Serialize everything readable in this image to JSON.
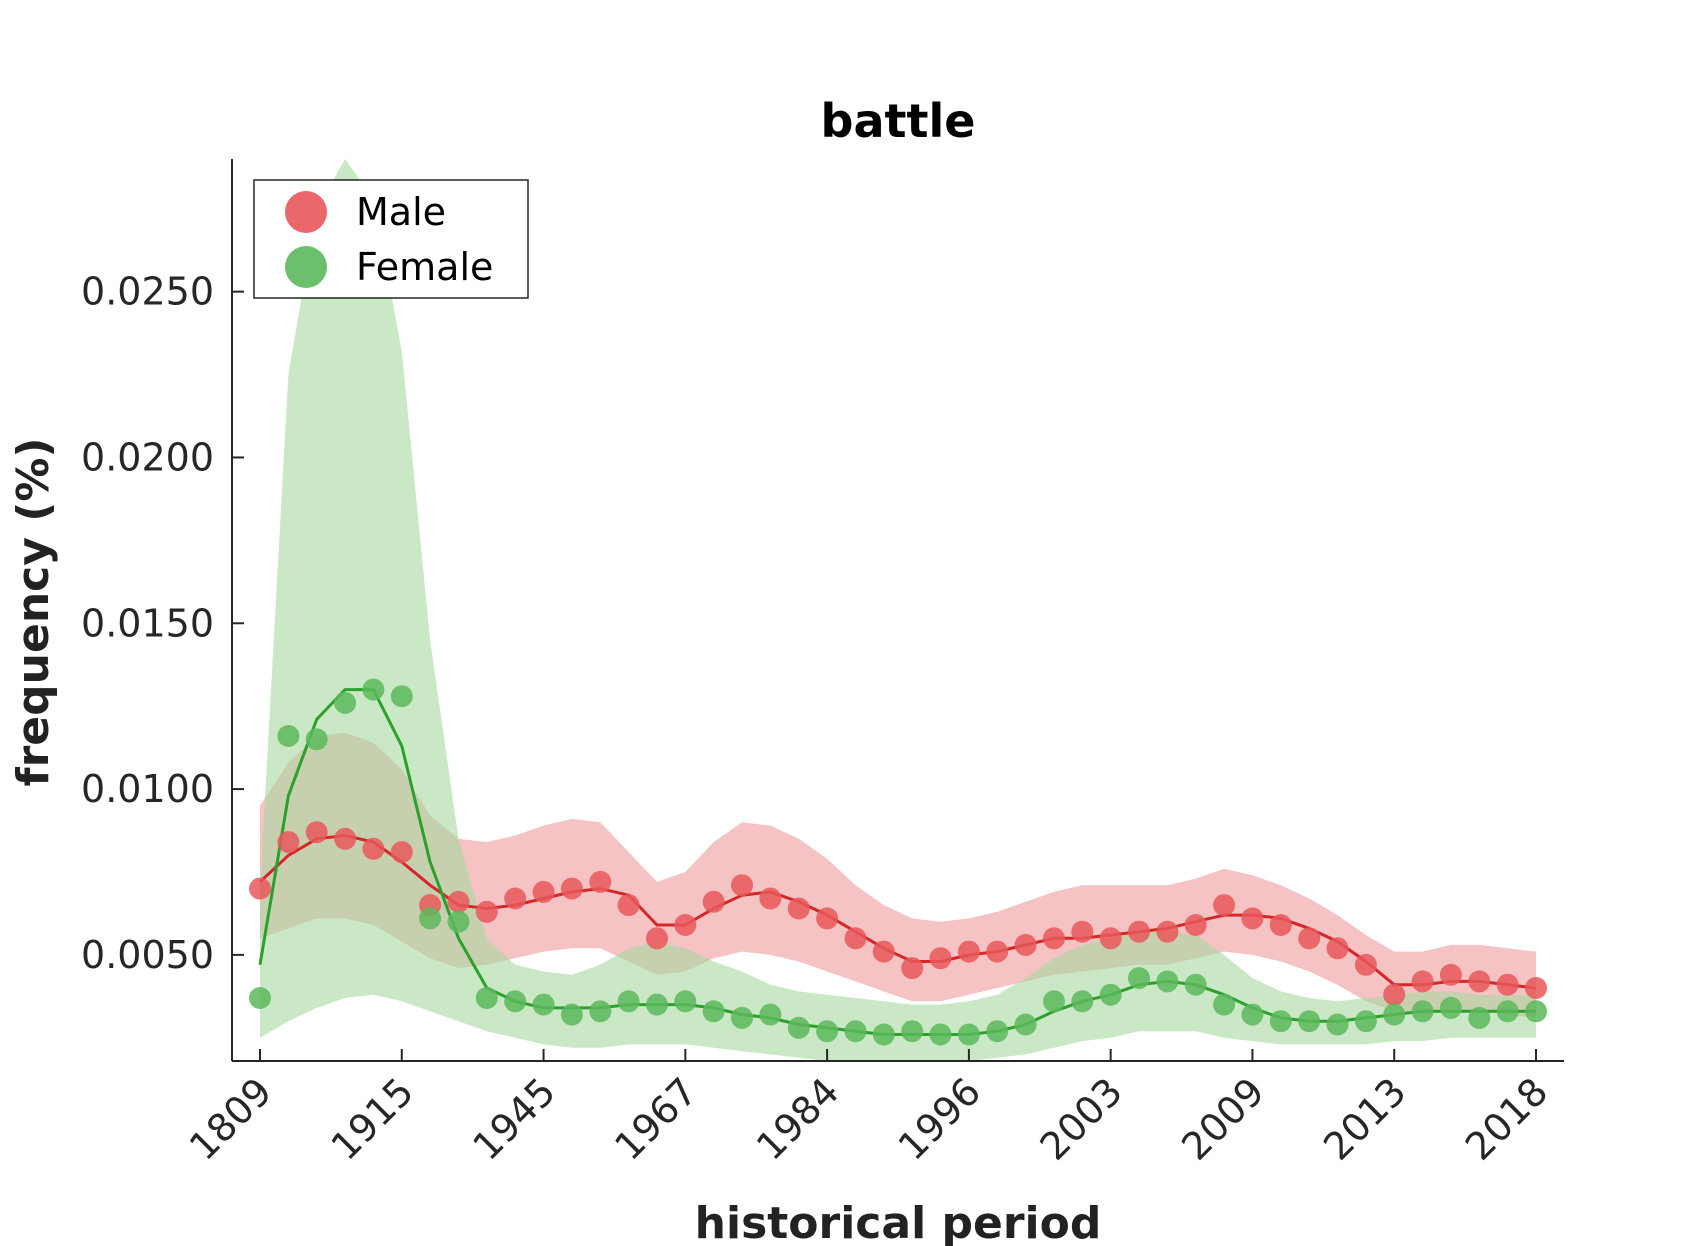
{
  "chart_data": {
    "type": "line",
    "title": "battle",
    "xlabel": "historical period",
    "ylabel": "frequency (%)",
    "x_tick_labels": [
      "1809",
      "1915",
      "1945",
      "1967",
      "1984",
      "1996",
      "2003",
      "2009",
      "2013",
      "2018"
    ],
    "y_ticks": [
      0.005,
      0.01,
      0.015,
      0.02,
      0.025
    ],
    "y_tick_labels": [
      "0.0050",
      "0.0100",
      "0.0150",
      "0.0200",
      "0.0250"
    ],
    "ylim": [
      0.0018,
      0.029
    ],
    "legend": {
      "placement": "top-left"
    },
    "grid": false,
    "series": [
      {
        "name": "Male",
        "color": "#d62728",
        "marker_color": "#e8585a",
        "band_color": "#f09b9c",
        "points": [
          0.007,
          0.0084,
          0.0087,
          0.0085,
          0.0082,
          0.0081,
          0.0065,
          0.0066,
          0.0063,
          0.0067,
          0.0069,
          0.007,
          0.0072,
          0.0065,
          0.0055,
          0.0059,
          0.0066,
          0.0071,
          0.0067,
          0.0064,
          0.0061,
          0.0055,
          0.0051,
          0.0046,
          0.0049,
          0.0051,
          0.0051,
          0.0053,
          0.0055,
          0.0057,
          0.0055,
          0.0057,
          0.0057,
          0.0059,
          0.0065,
          0.0061,
          0.0059,
          0.0055,
          0.0052,
          0.0047,
          0.0038,
          0.0042,
          0.0044,
          0.0042,
          0.0041,
          0.004
        ],
        "trend": [
          0.0072,
          0.008,
          0.0085,
          0.0086,
          0.0084,
          0.0078,
          0.0071,
          0.0065,
          0.0064,
          0.0065,
          0.0067,
          0.0069,
          0.007,
          0.0068,
          0.0059,
          0.0059,
          0.0064,
          0.0068,
          0.0069,
          0.0066,
          0.0062,
          0.0057,
          0.0052,
          0.0048,
          0.0048,
          0.005,
          0.0051,
          0.0053,
          0.0055,
          0.0055,
          0.0056,
          0.0057,
          0.0058,
          0.006,
          0.0062,
          0.0062,
          0.0061,
          0.0058,
          0.0054,
          0.0048,
          0.0041,
          0.0041,
          0.0042,
          0.0042,
          0.0041,
          0.004
        ],
        "band_upper": [
          0.0095,
          0.0108,
          0.0116,
          0.0117,
          0.0114,
          0.0106,
          0.0092,
          0.0085,
          0.0084,
          0.0086,
          0.0089,
          0.0091,
          0.009,
          0.0081,
          0.0072,
          0.0075,
          0.0084,
          0.009,
          0.0089,
          0.0085,
          0.0079,
          0.0071,
          0.0065,
          0.0061,
          0.006,
          0.0061,
          0.0063,
          0.0066,
          0.0069,
          0.0071,
          0.0071,
          0.0071,
          0.0071,
          0.0073,
          0.0076,
          0.0074,
          0.0071,
          0.0067,
          0.0062,
          0.0056,
          0.0051,
          0.0051,
          0.0053,
          0.0053,
          0.0052,
          0.0051
        ],
        "band_lower": [
          0.0055,
          0.0058,
          0.0061,
          0.0061,
          0.0059,
          0.0054,
          0.0049,
          0.0046,
          0.0047,
          0.0049,
          0.0051,
          0.0052,
          0.0052,
          0.0048,
          0.0044,
          0.0045,
          0.0049,
          0.0051,
          0.005,
          0.0048,
          0.0045,
          0.0042,
          0.0039,
          0.0036,
          0.0036,
          0.0038,
          0.004,
          0.0042,
          0.0044,
          0.0045,
          0.0046,
          0.0047,
          0.0047,
          0.0049,
          0.0051,
          0.005,
          0.0048,
          0.0045,
          0.0041,
          0.0036,
          0.0033,
          0.0032,
          0.0033,
          0.0033,
          0.0032,
          0.0031
        ]
      },
      {
        "name": "Female",
        "color": "#2ca02c",
        "marker_color": "#5cb85c",
        "band_color": "#a8d8a0",
        "points": [
          0.0037,
          0.0116,
          0.0115,
          0.0126,
          0.013,
          0.0128,
          0.0061,
          0.006,
          0.0037,
          0.0036,
          0.0035,
          0.0032,
          0.0033,
          0.0036,
          0.0035,
          0.0036,
          0.0033,
          0.0031,
          0.0032,
          0.0028,
          0.0027,
          0.0027,
          0.0026,
          0.0027,
          0.0026,
          0.0026,
          0.0027,
          0.0029,
          0.0036,
          0.0036,
          0.0038,
          0.0043,
          0.0042,
          0.0041,
          0.0035,
          0.0032,
          0.003,
          0.003,
          0.0029,
          0.003,
          0.0032,
          0.0033,
          0.0034,
          0.0031,
          0.0033,
          0.0033
        ],
        "trend": [
          0.0047,
          0.0098,
          0.0121,
          0.013,
          0.013,
          0.0113,
          0.0078,
          0.0055,
          0.004,
          0.0036,
          0.0034,
          0.0034,
          0.0034,
          0.0035,
          0.0035,
          0.0035,
          0.0034,
          0.0032,
          0.0031,
          0.0029,
          0.0028,
          0.0027,
          0.0026,
          0.0026,
          0.0026,
          0.0026,
          0.0027,
          0.0029,
          0.0033,
          0.0036,
          0.0038,
          0.0041,
          0.0042,
          0.0041,
          0.0038,
          0.0034,
          0.0031,
          0.003,
          0.003,
          0.0031,
          0.0032,
          0.0033,
          0.0033,
          0.0033,
          0.0033,
          0.0033
        ],
        "band_upper": [
          0.007,
          0.0225,
          0.0275,
          0.029,
          0.0278,
          0.0232,
          0.0145,
          0.0085,
          0.0055,
          0.0047,
          0.0045,
          0.0044,
          0.0047,
          0.0052,
          0.0054,
          0.0052,
          0.0048,
          0.0045,
          0.0041,
          0.0039,
          0.0038,
          0.0037,
          0.0036,
          0.0035,
          0.0035,
          0.0036,
          0.0038,
          0.0043,
          0.0049,
          0.0053,
          0.0055,
          0.0057,
          0.0057,
          0.0056,
          0.005,
          0.0043,
          0.0039,
          0.0037,
          0.0036,
          0.0037,
          0.0038,
          0.0039,
          0.0039,
          0.0038,
          0.0038,
          0.0038
        ],
        "band_lower": [
          0.0025,
          0.003,
          0.0034,
          0.0037,
          0.0038,
          0.0036,
          0.0033,
          0.003,
          0.0027,
          0.0025,
          0.0023,
          0.0022,
          0.0022,
          0.0023,
          0.0023,
          0.0023,
          0.0022,
          0.0021,
          0.002,
          0.0019,
          0.0018,
          0.0018,
          0.0018,
          0.0018,
          0.0018,
          0.0018,
          0.0019,
          0.002,
          0.0022,
          0.0024,
          0.0025,
          0.0027,
          0.0027,
          0.0027,
          0.0025,
          0.0024,
          0.0023,
          0.0023,
          0.0023,
          0.0023,
          0.0024,
          0.0024,
          0.0025,
          0.0025,
          0.0025,
          0.0025
        ]
      }
    ]
  }
}
